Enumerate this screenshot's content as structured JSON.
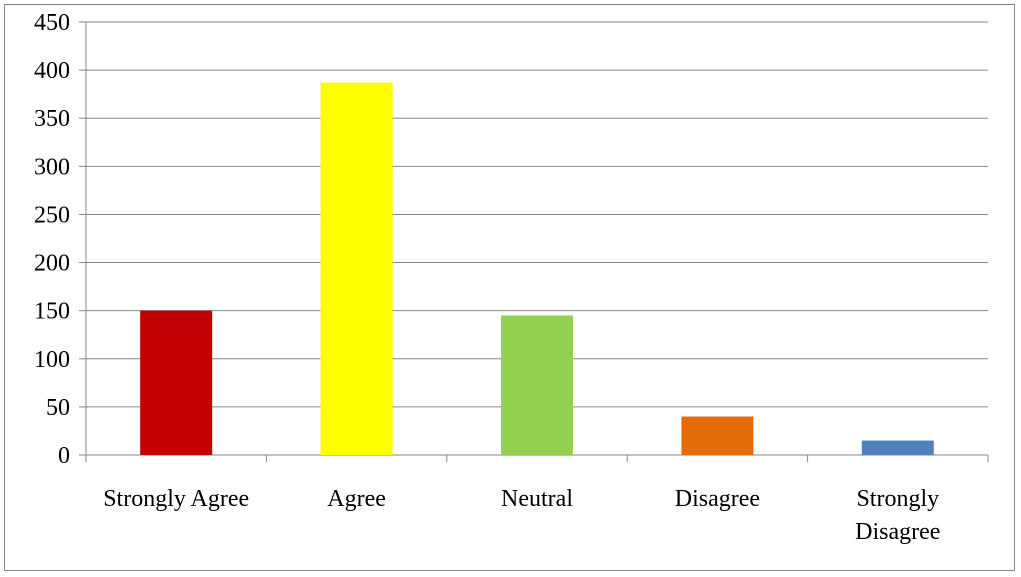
{
  "chart_data": {
    "type": "bar",
    "categories": [
      [
        "Strongly Agree"
      ],
      [
        "Agree"
      ],
      [
        "Neutral"
      ],
      [
        "Disagree"
      ],
      [
        "Strongly",
        "Disagree"
      ]
    ],
    "values": [
      150,
      387,
      145,
      40,
      15
    ],
    "colors": [
      "#C00000",
      "#FFFF00",
      "#92D050",
      "#E46C0A",
      "#4F81BD"
    ],
    "yticks": [
      "0",
      "50",
      "100",
      "150",
      "200",
      "250",
      "300",
      "350",
      "400",
      "450"
    ],
    "ylim": [
      0,
      450
    ],
    "grid": true,
    "legend": "none"
  }
}
